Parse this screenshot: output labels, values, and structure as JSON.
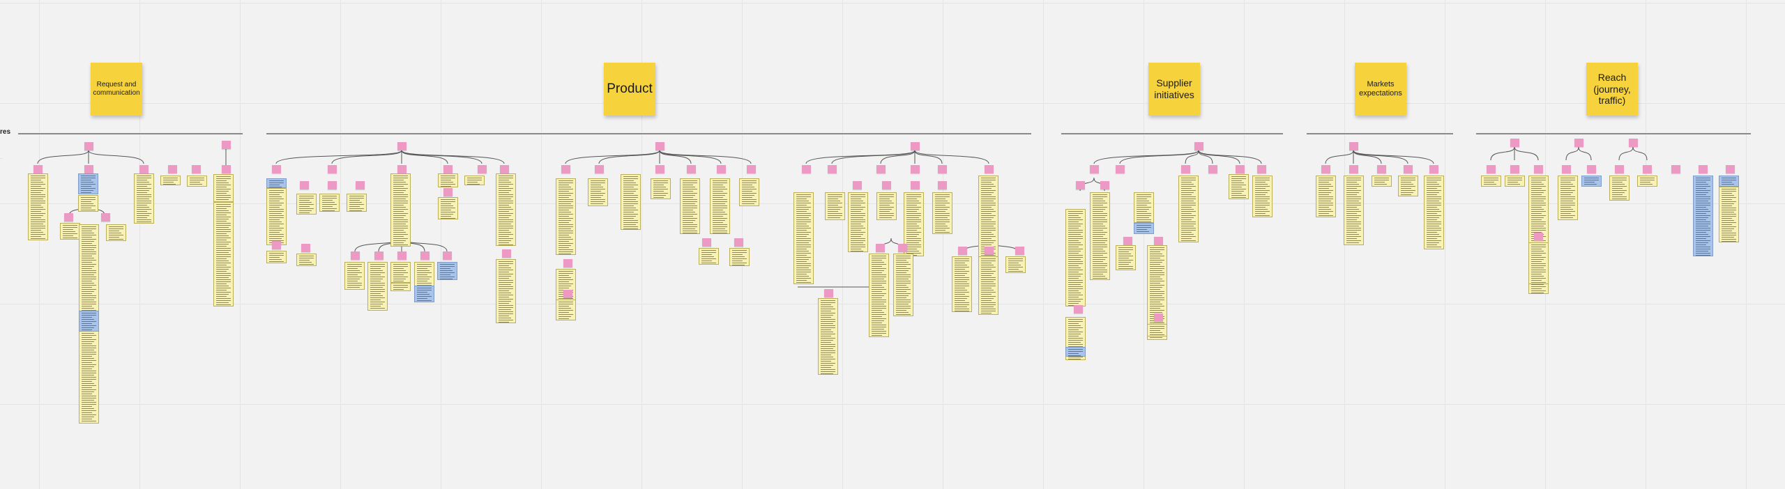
{
  "board": {
    "cut_off_heading": "res",
    "sections": [
      {
        "id": "request",
        "title": "Request and communication",
        "title_size": "small"
      },
      {
        "id": "product",
        "title": "Product",
        "title_size": "large"
      },
      {
        "id": "supplier",
        "title": "Supplier initiatives",
        "title_size": "medium"
      },
      {
        "id": "markets",
        "title": "Markets expectations",
        "title_size": "small"
      },
      {
        "id": "reach",
        "title": "Reach (journey, traffic)",
        "title_size": "medium"
      }
    ]
  },
  "colors": {
    "background": "#f2f2f2",
    "header_note": "#f6d33d",
    "tag_note": "#ec9ac4",
    "detail_card": "#f8f3b4",
    "highlight_card": "#a9c4ea",
    "divider": "#8a8a8a"
  },
  "icons": {
    "header_note": "sticky-note-icon",
    "tag_note": "pink-sticky-icon",
    "detail_card": "text-card-icon"
  }
}
